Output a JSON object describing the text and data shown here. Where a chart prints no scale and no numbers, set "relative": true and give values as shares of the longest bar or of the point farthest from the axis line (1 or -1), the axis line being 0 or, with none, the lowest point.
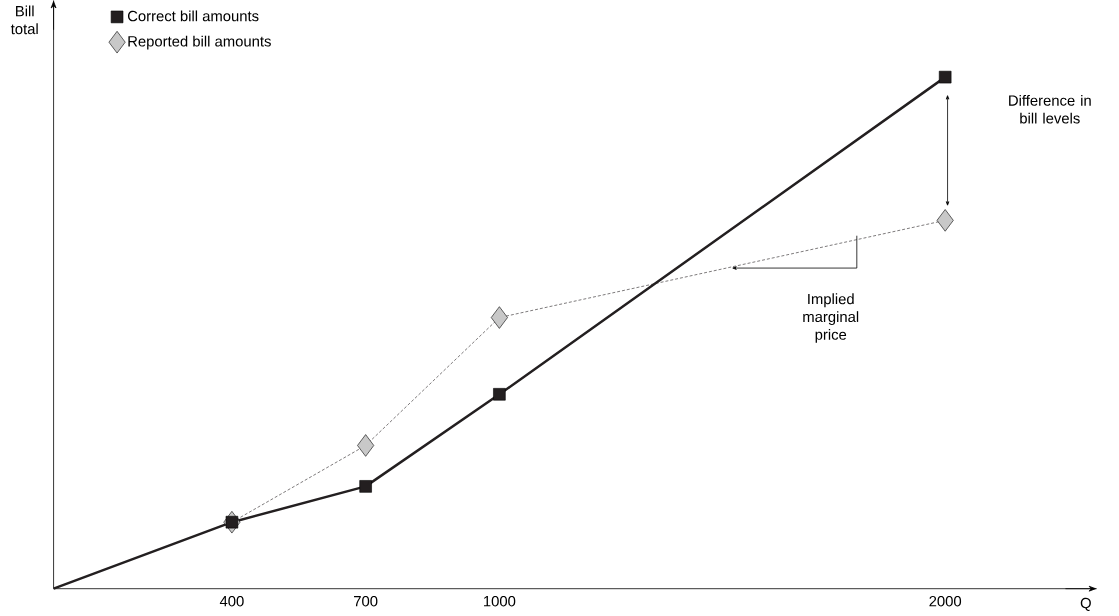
{
  "chart_data": {
    "type": "line",
    "relative": true,
    "xlabel": "Q",
    "ylabel": "Bill total",
    "xlim": [
      0,
      2340
    ],
    "xticks": [
      400,
      700,
      1000,
      2000
    ],
    "legend": "top left",
    "grid": false,
    "series": [
      {
        "color": "#231f20",
        "line_style": "solid",
        "marker": "none",
        "x": [
          0,
          400,
          700,
          1000,
          2000
        ],
        "values": [
          0,
          0.13,
          0.2,
          0.38,
          1
        ]
      },
      {
        "color": "#231f20",
        "line_style": "dashed",
        "marker": "none",
        "x": [
          400,
          700,
          1000,
          2000
        ],
        "values": [
          0.13,
          0.28,
          0.53,
          0.72
        ]
      },
      {
        "type": "scatter",
        "name": "Reported bill amounts",
        "color": "#c8c8c8",
        "marker": "diamond",
        "x": [
          400,
          700,
          1000,
          2000
        ],
        "values": [
          0.13,
          0.28,
          0.53,
          0.72
        ]
      },
      {
        "type": "scatter",
        "name": "Correct bill amounts",
        "color": "#231f20",
        "marker": "square",
        "x": [
          400,
          700,
          1000,
          2000
        ],
        "values": [
          0.13,
          0.2,
          0.38,
          1
        ]
      }
    ],
    "annotations": [
      "Difference in bill levels",
      "Implied marginal price"
    ]
  }
}
